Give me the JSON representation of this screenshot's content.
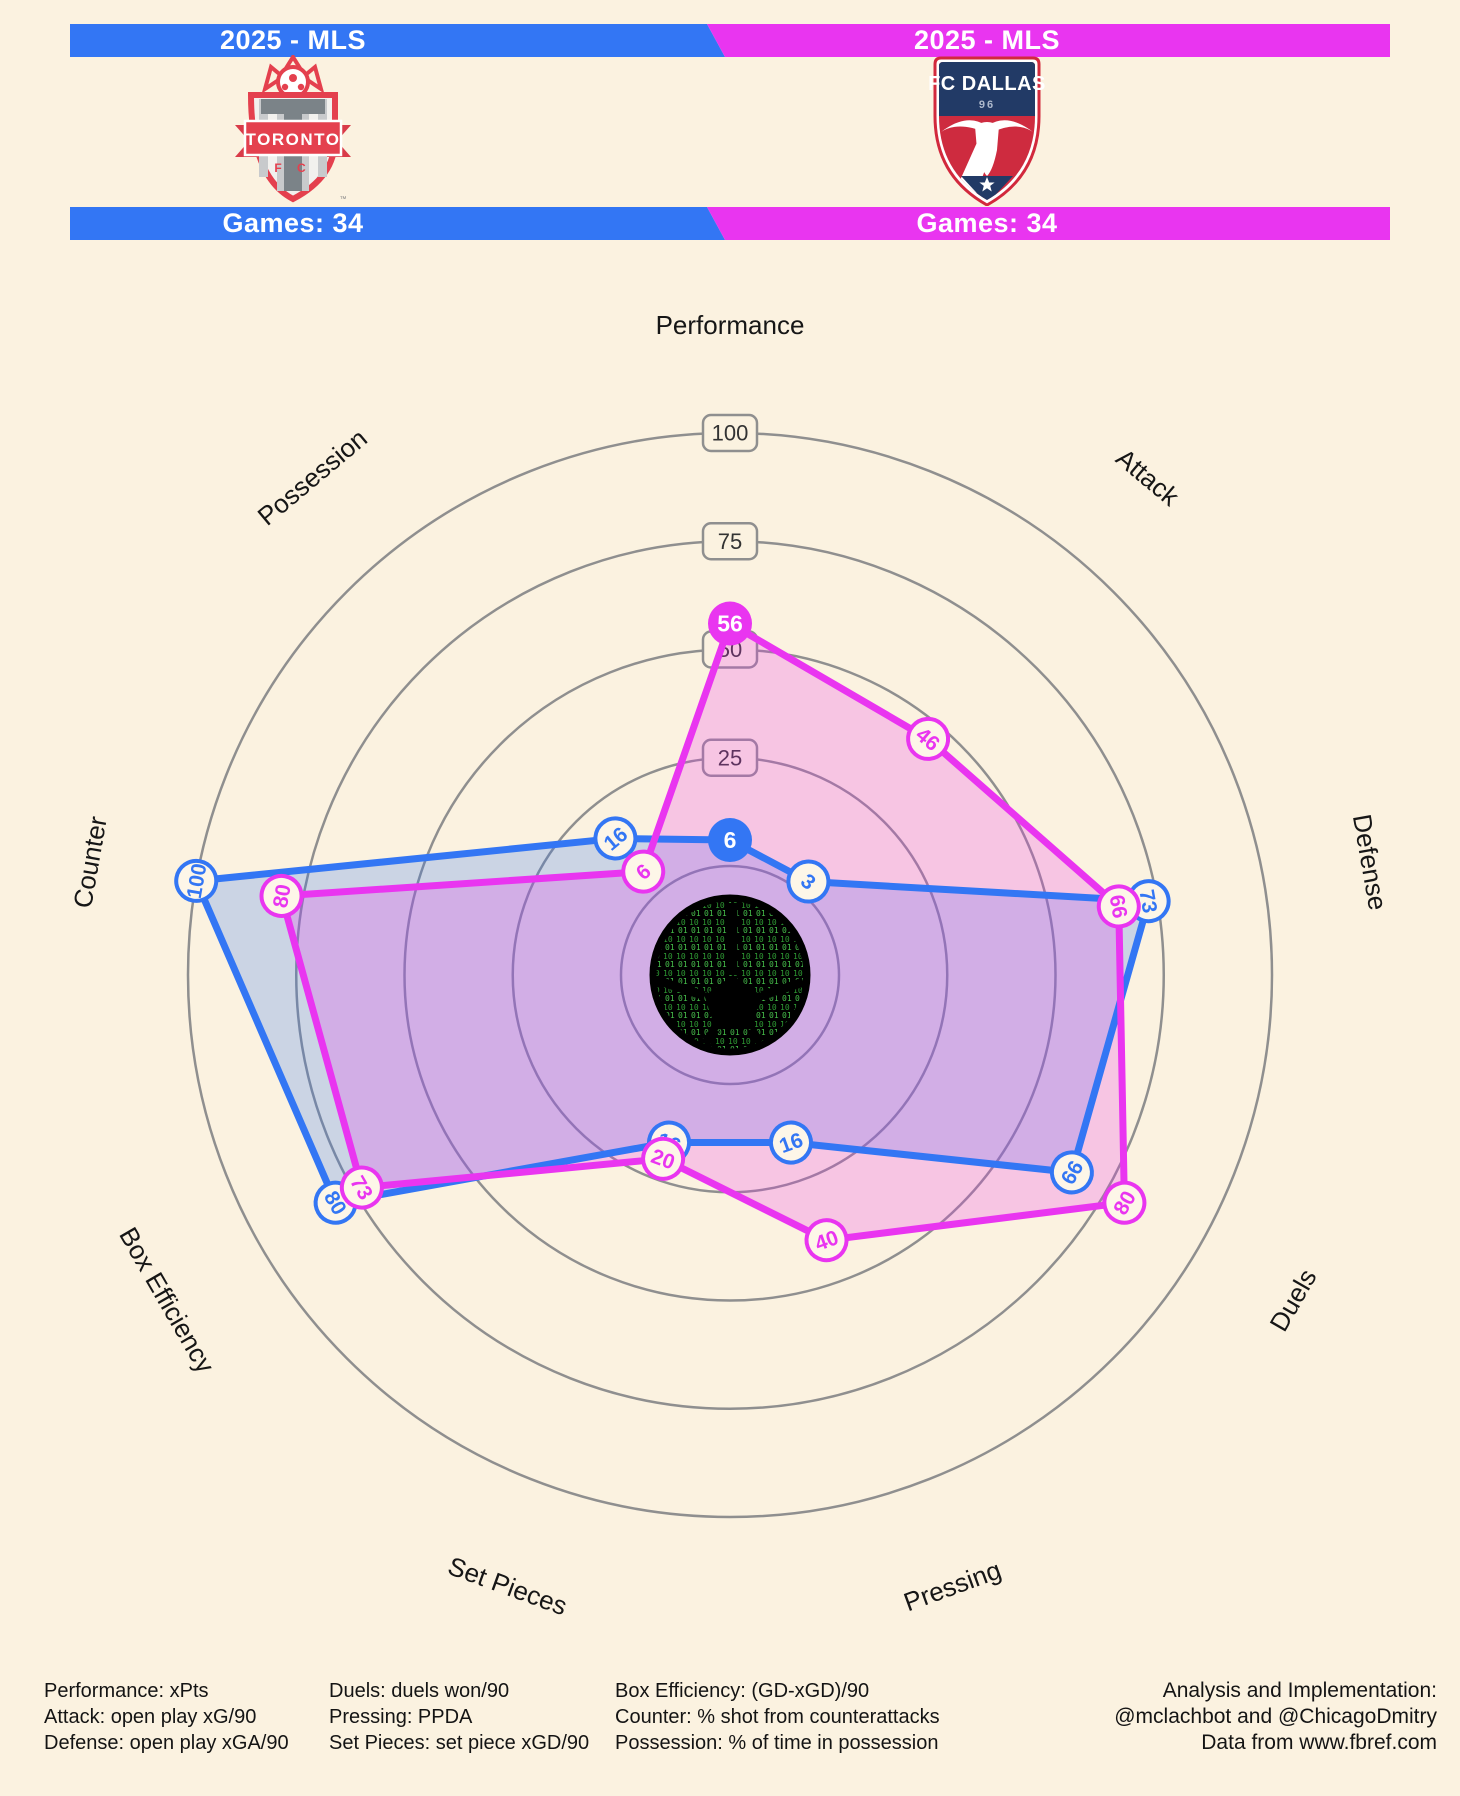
{
  "header": {
    "left": {
      "season": "2025 - MLS",
      "team": "Toronto FC",
      "games_label": "Games: 34",
      "color": "#3376F4",
      "crest": {
        "name": "TORONTO",
        "sub": "F C",
        "trademark": "™"
      }
    },
    "right": {
      "season": "2025 - MLS",
      "team": "FC Dallas",
      "games_label": "Games: 34",
      "color": "#E935F0",
      "crest": {
        "name": "FC DALLAS",
        "sub": "96"
      }
    }
  },
  "chart_data": {
    "type": "radar",
    "categories": [
      "Performance",
      "Attack",
      "Defense",
      "Duels",
      "Pressing",
      "Set Pieces",
      "Box Efficiency",
      "Counter",
      "Possession"
    ],
    "series": [
      {
        "name": "Toronto FC",
        "color": "#3376F4",
        "values": [
          6,
          3,
          73,
          66,
          16,
          16,
          80,
          100,
          16
        ]
      },
      {
        "name": "FC Dallas",
        "color": "#E935F0",
        "values": [
          56,
          46,
          66,
          80,
          40,
          20,
          73,
          80,
          6
        ]
      }
    ],
    "ticks": [
      25,
      50,
      75,
      100
    ],
    "range": [
      0,
      100
    ],
    "start_axis": "Performance",
    "direction": "clockwise",
    "grid": "circles",
    "legend_position": "none",
    "highlight_axis": "Performance"
  },
  "colors": {
    "background": "#FBF2E0",
    "ring": "#8F8F8F",
    "tick_box_fill": "#FBF2E0",
    "tick_text": "#333333",
    "axis_label_text": "#161616",
    "bubble_fill": "#FDF6E8",
    "fill_opacity": 0.24,
    "ball_green_dark": "#2E9B33",
    "ball_green_light": "#46C04B"
  },
  "footer": {
    "columns": [
      {
        "lines": [
          "Performance: xPts",
          "Attack: open play xG/90",
          "Defense: open play xGA/90"
        ]
      },
      {
        "lines": [
          "Duels: duels won/90",
          "Pressing: PPDA",
          "Set Pieces: set piece xGD/90"
        ]
      },
      {
        "lines": [
          "Box Efficiency: (GD-xGD)/90",
          "Counter: % shot from counterattacks",
          "Possession: % of time in possession"
        ]
      },
      {
        "lines": [
          "Analysis and Implementation:",
          "@mclachbot and @ChicagoDmitry",
          "Data from www.fbref.com"
        ]
      }
    ]
  }
}
